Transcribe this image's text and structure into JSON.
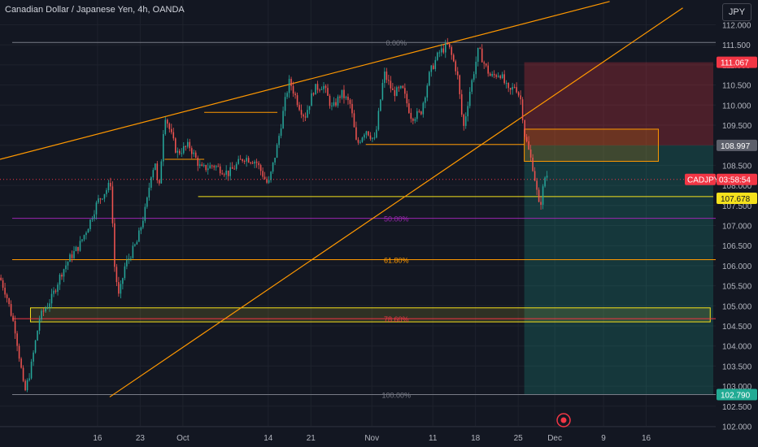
{
  "header": {
    "title": "Canadian Dollar / Japanese Yen, 4h, OANDA",
    "currency_button": "JPY"
  },
  "chart_data": {
    "type": "candlestick",
    "symbol": "CADJPY",
    "ylim": [
      102.0,
      112.3
    ],
    "price_ticks": [
      "112.000",
      "111.500",
      "111.000",
      "110.500",
      "110.000",
      "109.500",
      "109.000",
      "108.500",
      "108.000",
      "107.500",
      "107.000",
      "106.500",
      "106.000",
      "105.500",
      "105.000",
      "104.500",
      "104.000",
      "103.500",
      "103.000",
      "102.500",
      "102.000"
    ],
    "x_ticks": [
      {
        "label": "16",
        "x": 16.0
      },
      {
        "label": "23",
        "x": 23.0
      },
      {
        "label": "Oct",
        "x": 30.0
      },
      {
        "label": "14",
        "x": 44.0
      },
      {
        "label": "21",
        "x": 51.0
      },
      {
        "label": "Nov",
        "x": 61.0
      },
      {
        "label": "11",
        "x": 71.0
      },
      {
        "label": "18",
        "x": 78.0
      },
      {
        "label": "25",
        "x": 85.0
      },
      {
        "label": "Dec",
        "x": 91.0
      },
      {
        "label": "9",
        "x": 99.0
      },
      {
        "label": "16",
        "x": 106.0
      }
    ],
    "price_labels": [
      {
        "value": 111.067,
        "text": "111.067",
        "color": "#f23645",
        "fg": "#ffffff"
      },
      {
        "value": 108.997,
        "text": "108.997",
        "color": "#5d606b",
        "fg": "#ffffff"
      },
      {
        "value": 107.678,
        "text": "107.678",
        "color": "#f5e11d",
        "fg": "#131722"
      },
      {
        "value": 102.79,
        "text": "102.790",
        "color": "#22ab94",
        "fg": "#ffffff"
      }
    ],
    "current_price": {
      "value": 108.15,
      "symbol": "CADJPY",
      "countdown": "03:58:54",
      "color": "#f23645"
    },
    "fib_levels": [
      {
        "label": "0.00%",
        "value": 111.56,
        "color": "#787b86"
      },
      {
        "label": "50.00%",
        "value": 107.18,
        "color": "#9c27b0"
      },
      {
        "label": "61.80%",
        "value": 106.15,
        "color": "#ff9800"
      },
      {
        "label": "78.60%",
        "value": 104.68,
        "color": "#f23645"
      },
      {
        "label": "100.00%",
        "value": 102.79,
        "color": "#787b86"
      }
    ],
    "trendlines": [
      {
        "from": [
          0.0,
          108.65
        ],
        "to": [
          100.0,
          112.58
        ],
        "color": "#ff9800"
      },
      {
        "from": [
          18.0,
          102.73
        ],
        "to": [
          112.0,
          112.42
        ],
        "color": "#ff9800"
      }
    ],
    "segments": [
      {
        "from": [
          27.0,
          108.65
        ],
        "to": [
          33.5,
          108.65
        ],
        "color": "#ff9800"
      },
      {
        "from": [
          33.5,
          109.82
        ],
        "to": [
          45.5,
          109.82
        ],
        "color": "#ff9800"
      },
      {
        "from": [
          60.0,
          109.02
        ],
        "to": [
          86.0,
          109.02
        ],
        "color": "#ff9800"
      },
      {
        "from": [
          32.5,
          107.72
        ],
        "to": [
          117.0,
          107.72
        ],
        "color": "#f5e11d"
      }
    ],
    "zones": [
      {
        "x": [
          86.0,
          117.0
        ],
        "y": [
          108.997,
          111.067
        ],
        "fill": "rgba(242,54,69,0.25)"
      },
      {
        "x": [
          86.0,
          117.0
        ],
        "y": [
          102.79,
          108.997
        ],
        "fill": "rgba(34,171,148,0.22)"
      },
      {
        "x": [
          86.0,
          108.0
        ],
        "y": [
          108.6,
          109.4
        ],
        "fill": "rgba(255,152,0,0.18)",
        "stroke": "#ff9800"
      },
      {
        "x": [
          5.0,
          116.5
        ],
        "y": [
          104.6,
          104.95
        ],
        "fill": "rgba(255,235,59,0.12)",
        "stroke": "#f5e11d"
      }
    ],
    "path_points": [
      [
        0.0,
        105.7
      ],
      [
        1.0,
        105.3
      ],
      [
        2.5,
        104.4
      ],
      [
        3.5,
        103.4
      ],
      [
        4.0,
        102.8
      ],
      [
        5.0,
        103.4
      ],
      [
        6.5,
        104.7
      ],
      [
        8.5,
        105.2
      ],
      [
        10.0,
        105.8
      ],
      [
        11.5,
        106.2
      ],
      [
        13.0,
        106.5
      ],
      [
        14.5,
        107.0
      ],
      [
        16.0,
        107.6
      ],
      [
        17.5,
        107.9
      ],
      [
        18.3,
        108.1
      ],
      [
        18.6,
        106.2
      ],
      [
        19.5,
        105.2
      ],
      [
        20.5,
        106.0
      ],
      [
        22.5,
        106.6
      ],
      [
        24.0,
        107.5
      ],
      [
        24.8,
        108.3
      ],
      [
        25.5,
        108.6
      ],
      [
        26.0,
        107.7
      ],
      [
        27.0,
        109.8
      ],
      [
        29.0,
        108.8
      ],
      [
        31.0,
        109.0
      ],
      [
        33.0,
        108.4
      ],
      [
        35.0,
        108.5
      ],
      [
        37.5,
        108.3
      ],
      [
        40.0,
        108.7
      ],
      [
        42.0,
        108.6
      ],
      [
        44.0,
        108.0
      ],
      [
        45.5,
        109.0
      ],
      [
        47.0,
        110.3
      ],
      [
        47.5,
        110.6
      ],
      [
        49.0,
        110.0
      ],
      [
        50.0,
        109.7
      ],
      [
        51.5,
        110.4
      ],
      [
        53.0,
        110.5
      ],
      [
        54.5,
        109.9
      ],
      [
        56.0,
        110.3
      ],
      [
        57.5,
        110.0
      ],
      [
        58.5,
        109.0
      ],
      [
        60.0,
        109.4
      ],
      [
        61.5,
        109.1
      ],
      [
        63.0,
        110.8
      ],
      [
        64.5,
        110.3
      ],
      [
        66.0,
        110.4
      ],
      [
        67.5,
        109.7
      ],
      [
        69.0,
        109.8
      ],
      [
        70.5,
        110.8
      ],
      [
        72.0,
        111.3
      ],
      [
        73.5,
        111.5
      ],
      [
        75.0,
        110.8
      ],
      [
        76.0,
        109.4
      ],
      [
        77.0,
        110.3
      ],
      [
        78.5,
        111.4
      ],
      [
        79.5,
        111.0
      ],
      [
        80.5,
        110.7
      ],
      [
        82.0,
        110.8
      ],
      [
        83.5,
        110.3
      ],
      [
        84.5,
        110.5
      ],
      [
        85.5,
        110.1
      ],
      [
        86.0,
        109.3
      ],
      [
        87.5,
        108.4
      ],
      [
        88.5,
        107.4
      ],
      [
        89.5,
        108.3
      ],
      [
        90.0,
        108.2
      ]
    ]
  }
}
